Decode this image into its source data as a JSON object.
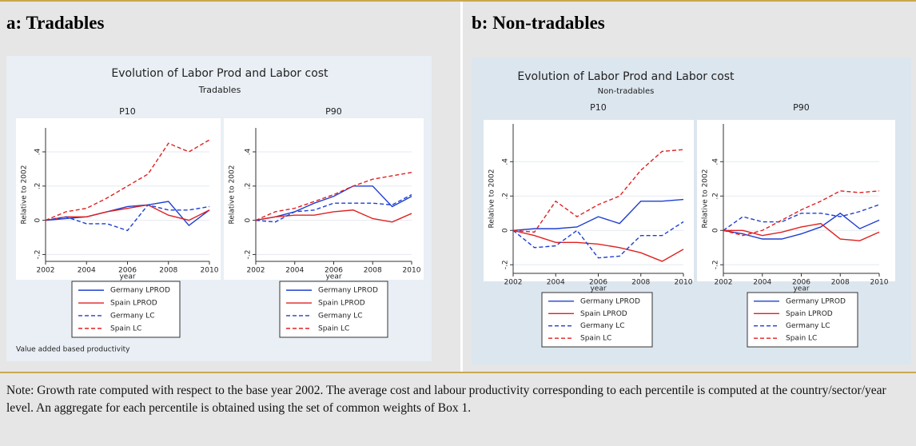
{
  "figures": [
    {
      "heading": "a: Tradables",
      "title": "Evolution of Labor Prod and Labor cost",
      "subtitle": "Tradables",
      "note": "Value added based productivity"
    },
    {
      "heading": "b: Non-tradables",
      "title": "Evolution of Labor Prod and Labor cost",
      "subtitle": "Non-tradables"
    }
  ],
  "chart_data": [
    {
      "type": "line",
      "title": "P10",
      "ylabel": "Relative to 2002",
      "xlabel": "year",
      "x": [
        2002,
        2003,
        2004,
        2005,
        2006,
        2007,
        2008,
        2009,
        2010
      ],
      "xlim": [
        2002,
        2010
      ],
      "xticks": [
        2002,
        2004,
        2006,
        2008,
        2010
      ],
      "ylim": [
        -0.24,
        0.54
      ],
      "yticks": [
        {
          "value": -0.2,
          "label": "-.2"
        },
        0,
        {
          "value": 0.2,
          "label": ".2"
        },
        {
          "value": 0.4,
          "label": ".4"
        }
      ],
      "grid": true,
      "series": [
        {
          "name": "Germany LPROD",
          "color": "#1f3fd0",
          "dash": false,
          "values": [
            0,
            0.01,
            0.02,
            0.05,
            0.08,
            0.09,
            0.11,
            -0.03,
            0.06
          ]
        },
        {
          "name": "Spain LPROD",
          "color": "#e02020",
          "dash": false,
          "values": [
            0,
            0.02,
            0.02,
            0.05,
            0.07,
            0.09,
            0.03,
            0.0,
            0.06
          ]
        },
        {
          "name": "Germany LC",
          "color": "#1f3fd0",
          "dash": true,
          "values": [
            0,
            0.02,
            -0.02,
            -0.02,
            -0.06,
            0.09,
            0.06,
            0.06,
            0.08
          ]
        },
        {
          "name": "Spain LC",
          "color": "#e02020",
          "dash": true,
          "values": [
            0,
            0.05,
            0.07,
            0.13,
            0.2,
            0.27,
            0.45,
            0.4,
            0.47
          ]
        }
      ]
    },
    {
      "type": "line",
      "title": "P90",
      "ylabel": "Relative to 2002",
      "xlabel": "year",
      "x": [
        2002,
        2003,
        2004,
        2005,
        2006,
        2007,
        2008,
        2009,
        2010
      ],
      "xlim": [
        2002,
        2010
      ],
      "xticks": [
        2002,
        2004,
        2006,
        2008,
        2010
      ],
      "ylim": [
        -0.24,
        0.54
      ],
      "yticks": [
        {
          "value": -0.2,
          "label": "-.2"
        },
        0,
        {
          "value": 0.2,
          "label": ".2"
        },
        {
          "value": 0.4,
          "label": ".4"
        }
      ],
      "grid": true,
      "series": [
        {
          "name": "Germany LPROD",
          "color": "#1f3fd0",
          "dash": false,
          "values": [
            0,
            0.02,
            0.05,
            0.1,
            0.14,
            0.2,
            0.2,
            0.08,
            0.14
          ]
        },
        {
          "name": "Spain LPROD",
          "color": "#e02020",
          "dash": false,
          "values": [
            0,
            0.02,
            0.03,
            0.03,
            0.05,
            0.06,
            0.01,
            -0.01,
            0.04
          ]
        },
        {
          "name": "Germany LC",
          "color": "#1f3fd0",
          "dash": true,
          "values": [
            0,
            -0.01,
            0.05,
            0.06,
            0.1,
            0.1,
            0.1,
            0.09,
            0.15
          ]
        },
        {
          "name": "Spain LC",
          "color": "#e02020",
          "dash": true,
          "values": [
            0,
            0.05,
            0.07,
            0.11,
            0.15,
            0.2,
            0.24,
            0.26,
            0.28
          ]
        }
      ]
    },
    {
      "type": "line",
      "title": "P10",
      "ylabel": "Relative to 2002",
      "xlabel": "year",
      "x": [
        2002,
        2003,
        2004,
        2005,
        2006,
        2007,
        2008,
        2009,
        2010
      ],
      "xlim": [
        2002,
        2010
      ],
      "xticks": [
        2002,
        2004,
        2006,
        2008,
        2010
      ],
      "ylim": [
        -0.25,
        0.62
      ],
      "yticks": [
        {
          "value": -0.2,
          "label": "-.2"
        },
        0,
        {
          "value": 0.2,
          "label": ".2"
        },
        {
          "value": 0.4,
          "label": ".4"
        }
      ],
      "grid": true,
      "series": [
        {
          "name": "Germany LPROD",
          "color": "#1f3fd0",
          "dash": false,
          "values": [
            0,
            0.01,
            0.01,
            0.02,
            0.08,
            0.04,
            0.17,
            0.17,
            0.18
          ]
        },
        {
          "name": "Spain LPROD",
          "color": "#e02020",
          "dash": false,
          "values": [
            0,
            -0.03,
            -0.07,
            -0.07,
            -0.08,
            -0.1,
            -0.13,
            -0.18,
            -0.11
          ]
        },
        {
          "name": "Germany LC",
          "color": "#1f3fd0",
          "dash": true,
          "values": [
            0,
            -0.1,
            -0.09,
            0.0,
            -0.16,
            -0.15,
            -0.03,
            -0.03,
            0.05
          ]
        },
        {
          "name": "Spain LC",
          "color": "#e02020",
          "dash": true,
          "values": [
            0,
            -0.01,
            0.17,
            0.08,
            0.15,
            0.2,
            0.35,
            0.46,
            0.47
          ]
        }
      ]
    },
    {
      "type": "line",
      "title": "P90",
      "ylabel": "Relative to 2002",
      "xlabel": "year",
      "x": [
        2002,
        2003,
        2004,
        2005,
        2006,
        2007,
        2008,
        2009,
        2010
      ],
      "xlim": [
        2002,
        2010
      ],
      "xticks": [
        2002,
        2004,
        2006,
        2008,
        2010
      ],
      "ylim": [
        -0.25,
        0.62
      ],
      "yticks": [
        {
          "value": -0.2,
          "label": "-.2"
        },
        0,
        {
          "value": 0.2,
          "label": ".2"
        },
        {
          "value": 0.4,
          "label": ".4"
        }
      ],
      "grid": true,
      "series": [
        {
          "name": "Germany LPROD",
          "color": "#1f3fd0",
          "dash": false,
          "values": [
            0,
            -0.02,
            -0.05,
            -0.05,
            -0.02,
            0.02,
            0.1,
            0.01,
            0.06
          ]
        },
        {
          "name": "Spain LPROD",
          "color": "#e02020",
          "dash": false,
          "values": [
            0,
            0.0,
            -0.03,
            -0.01,
            0.02,
            0.04,
            -0.05,
            -0.06,
            -0.01
          ]
        },
        {
          "name": "Germany LC",
          "color": "#1f3fd0",
          "dash": true,
          "values": [
            0,
            0.08,
            0.05,
            0.05,
            0.1,
            0.1,
            0.08,
            0.11,
            0.15
          ]
        },
        {
          "name": "Spain LC",
          "color": "#e02020",
          "dash": true,
          "values": [
            0,
            -0.03,
            0.0,
            0.06,
            0.12,
            0.17,
            0.23,
            0.22,
            0.23
          ]
        }
      ]
    }
  ],
  "note": "Note: Growth rate computed with respect to the base year 2002. The average cost and labour productivity corresponding to each percentile is computed at the country/sector/year level. An aggregate for each percentile is obtained using the set of common weights of Box 1."
}
